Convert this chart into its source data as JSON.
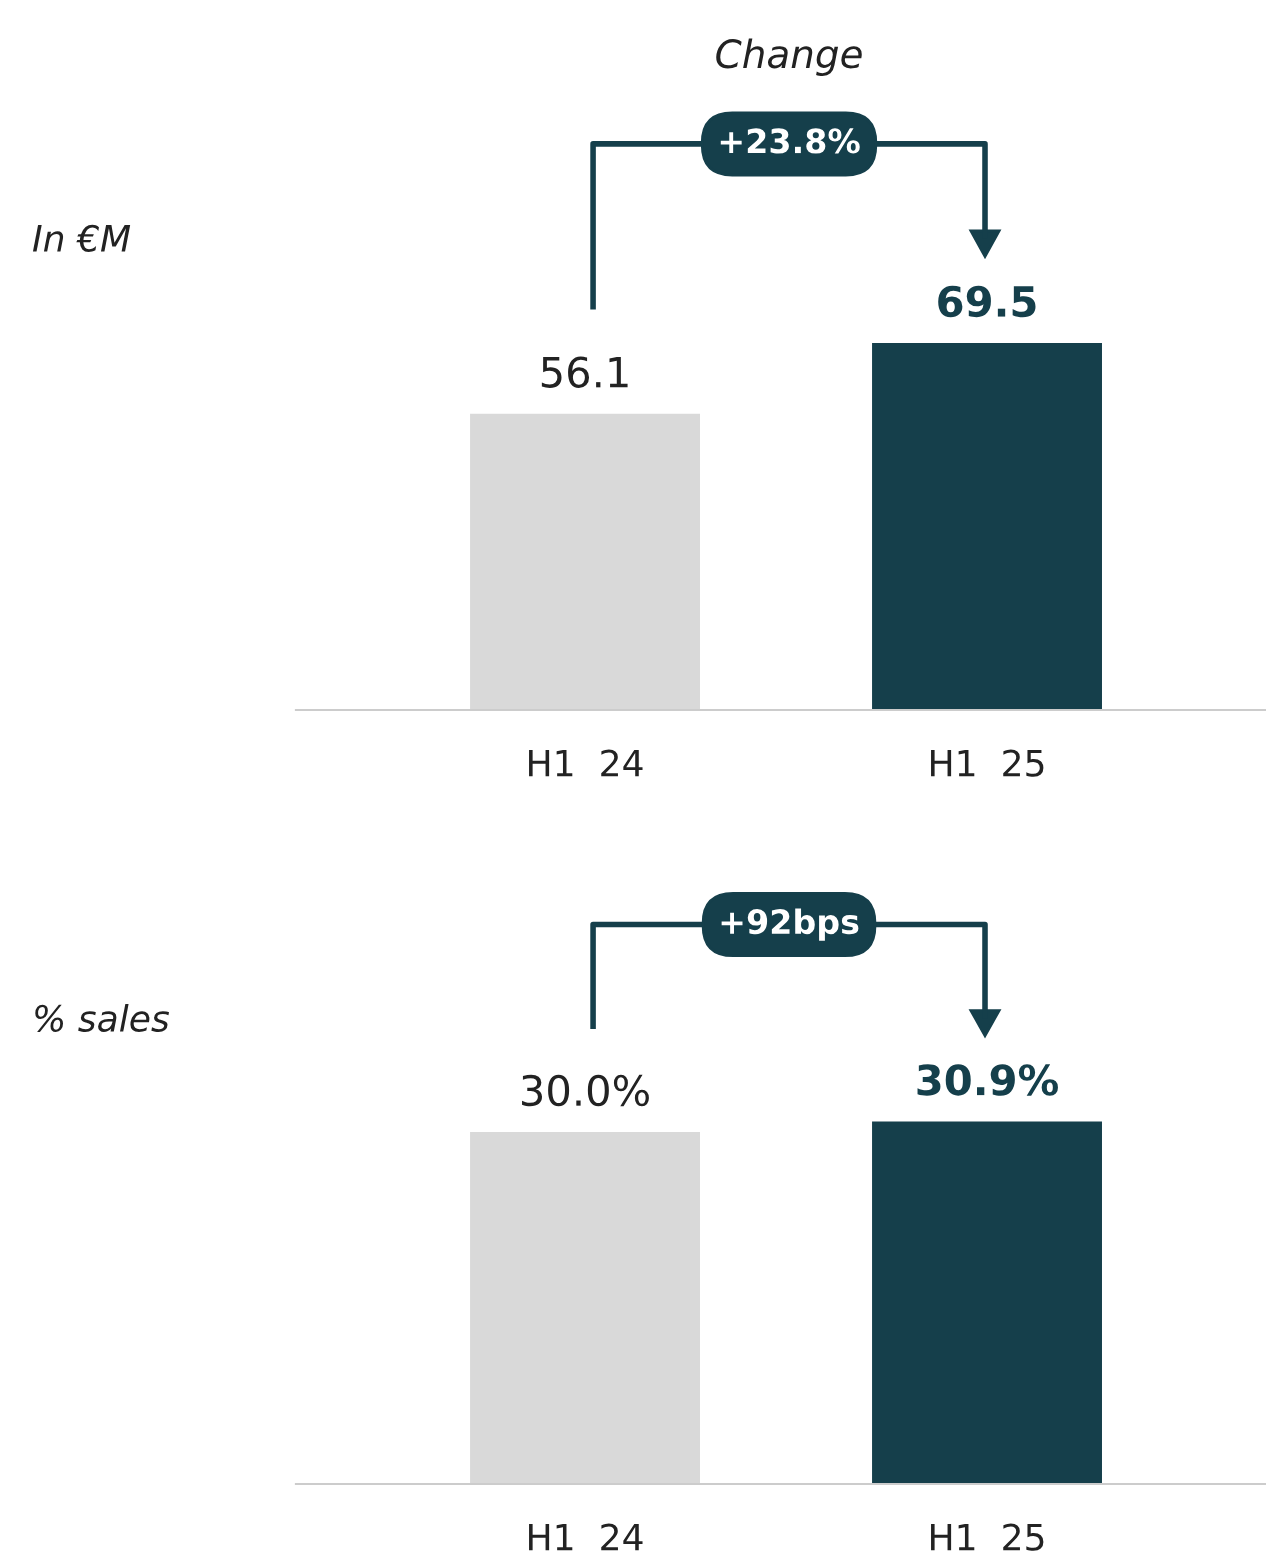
{
  "chart_data": [
    {
      "type": "bar",
      "title": "Change",
      "categories": [
        "H1  24",
        "H1  25"
      ],
      "values": [
        56.1,
        69.5
      ],
      "colors": [
        "#d9d9d9",
        "#153f4b"
      ],
      "value_labels": [
        "56.1",
        "69.5"
      ],
      "annotations": [
        "In €M",
        "+23.8%"
      ]
    },
    {
      "type": "bar",
      "categories": [
        "H1  24",
        "H1  25"
      ],
      "values": [
        30.0,
        30.9
      ],
      "colors": [
        "#d9d9d9",
        "#153f4b"
      ],
      "value_labels": [
        "30.0%",
        "30.9%"
      ],
      "annotations": [
        "% sales",
        "+92bps"
      ]
    }
  ]
}
